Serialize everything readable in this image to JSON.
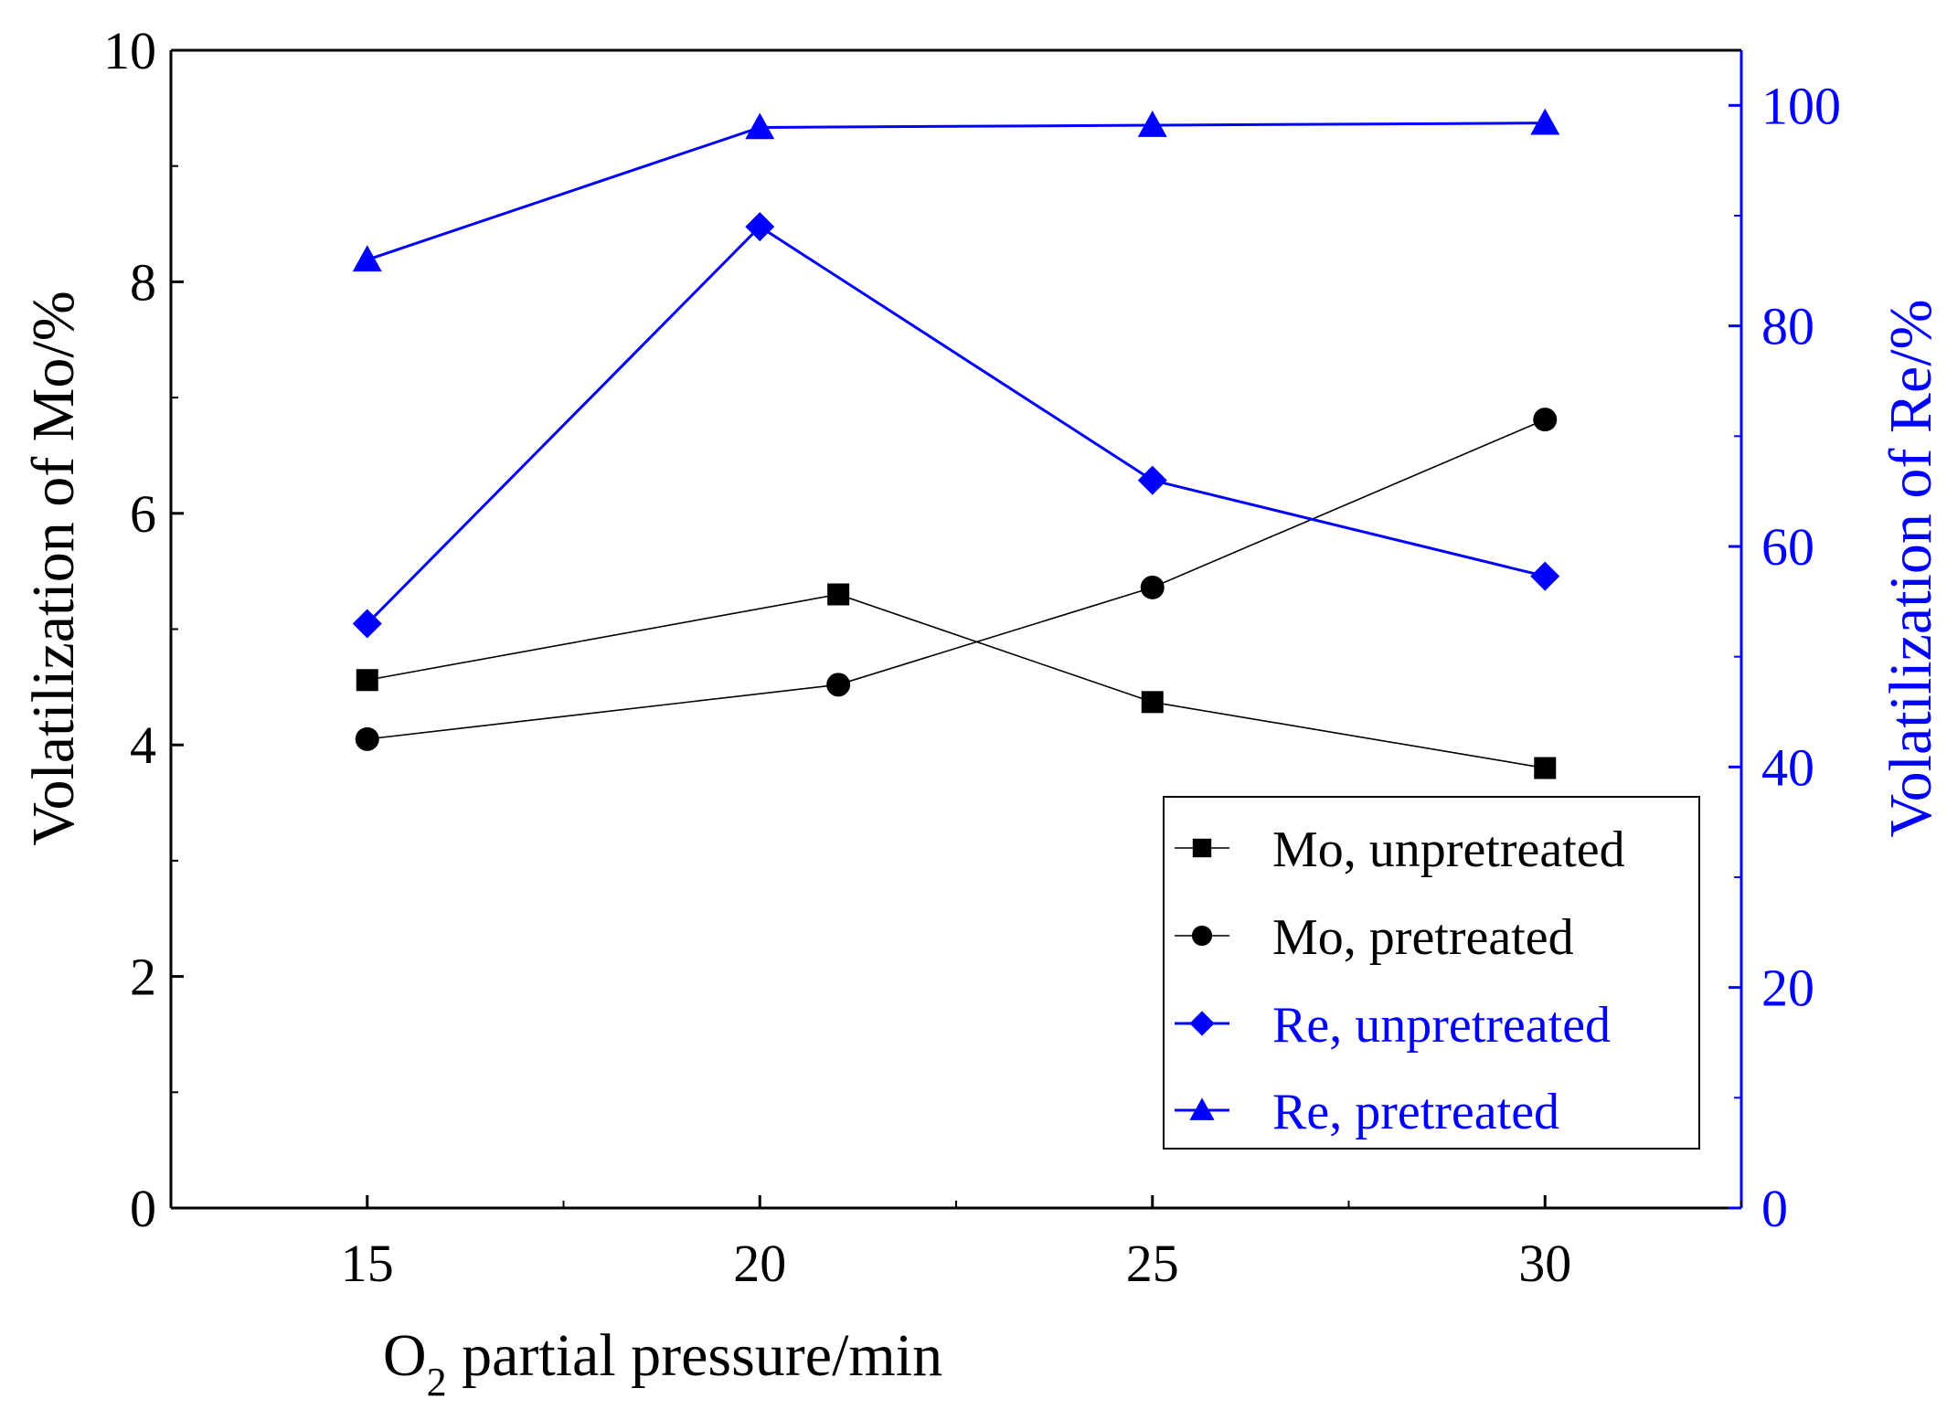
{
  "chart_data": {
    "type": "line",
    "xlabel": {
      "main": "O",
      "sub": "2",
      "rest": " partial pressure/min"
    },
    "ylabel": "Volatilization of Mo/%",
    "y2label": "Volatilization of Re/%",
    "xlim": [
      12.5,
      32.5
    ],
    "ylim": [
      0,
      10
    ],
    "y2lim": [
      0,
      105
    ],
    "xticks": [
      "15",
      "20",
      "25",
      "30"
    ],
    "yticks": [
      "0",
      "2",
      "4",
      "6",
      "8",
      "10"
    ],
    "y2ticks": [
      "0",
      "20",
      "40",
      "60",
      "80",
      "100"
    ],
    "grid": false,
    "legend_position": "bottom-right",
    "axis_colors": {
      "left": "#000000",
      "right": "#0000ff"
    },
    "series": [
      {
        "name": "Mo, unpretreated",
        "axis": "left",
        "color": "#000000",
        "marker": "square",
        "x": [
          15,
          21,
          25,
          30
        ],
        "y": [
          4.56,
          5.3,
          4.37,
          3.8
        ]
      },
      {
        "name": "Mo, pretreated",
        "axis": "left",
        "color": "#000000",
        "marker": "circle",
        "x": [
          15,
          21,
          25,
          30
        ],
        "y": [
          4.05,
          4.52,
          5.36,
          6.81
        ]
      },
      {
        "name": "Re, unpretreated",
        "axis": "right",
        "color": "#0000ff",
        "marker": "diamond",
        "x": [
          15,
          20,
          25,
          30
        ],
        "y": [
          53.0,
          89.0,
          66.0,
          57.3
        ]
      },
      {
        "name": "Re, pretreated",
        "axis": "right",
        "color": "#0000ff",
        "marker": "triangle",
        "x": [
          15,
          20,
          25,
          30
        ],
        "y": [
          86.0,
          98.0,
          98.2,
          98.4
        ]
      }
    ]
  }
}
